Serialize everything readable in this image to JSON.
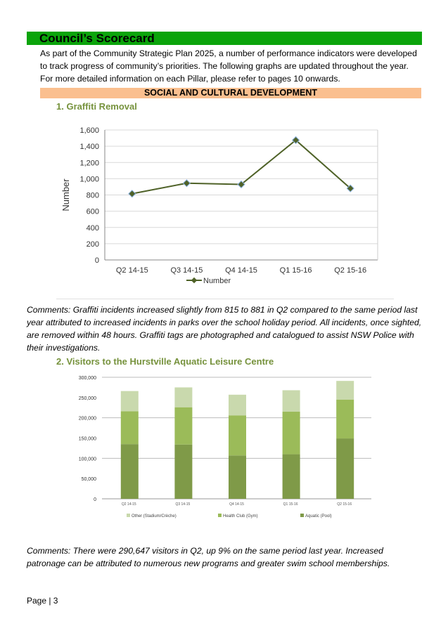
{
  "title": "Council’s Scorecard",
  "intro": "As part of the Community Strategic Plan 2025, a number of performance indicators were developed to track progress of community’s priorities.  The following graphs are updated throughout the year. For more detailed information on each Pillar, please refer to pages 10 onwards.",
  "section": "SOCIAL AND CULTURAL DEVELOPMENT",
  "heading1": "1.  Graffiti Removal",
  "comments1": "Comments: Graffiti incidents increased slightly from 815 to 881 in Q2 compared to the same period last year attributed to increased incidents in parks over the school holiday period. All incidents, once sighted, are removed within 48 hours. Graffiti tags are photographed and catalogued to assist NSW Police with their investigations.",
  "heading2": "2.  Visitors to the Hurstville Aquatic Leisure Centre",
  "comments2": "Comments: There were 290,647 visitors in Q2, up 9% on the same period last year. Increased patronage can be attributed to numerous new programs and greater swim school memberships.",
  "footer": "Page | 3",
  "chart_data": [
    {
      "type": "line",
      "title": "",
      "categories": [
        "Q2 14-15",
        "Q3 14-15",
        "Q4 14-15",
        "Q1 15-16",
        "Q2 15-16"
      ],
      "series": [
        {
          "name": "Number",
          "values": [
            815,
            945,
            930,
            1475,
            881
          ],
          "color": "#4f6228"
        }
      ],
      "ylabel": "Number",
      "xlabel": "",
      "ylim": [
        0,
        1600
      ],
      "yticks": [
        0,
        200,
        400,
        600,
        800,
        1000,
        1200,
        1400,
        1600
      ],
      "ytick_labels": [
        "0",
        "200",
        "400",
        "600",
        "800",
        "1,000",
        "1,200",
        "1,400",
        "1,600"
      ],
      "grid": true,
      "legend": "bottom"
    },
    {
      "type": "bar",
      "stacked": true,
      "categories": [
        "Q2 14-15",
        "Q3 14-15",
        "Q4 14-15",
        "Q1 15-16",
        "Q2 15-16"
      ],
      "series": [
        {
          "name": "Aquatic (Pool)",
          "values": [
            135000,
            134000,
            107000,
            110000,
            149000
          ],
          "color": "#7f9a48"
        },
        {
          "name": "Health Club (Gym)",
          "values": [
            81000,
            92000,
            99000,
            105000,
            96000
          ],
          "color": "#9bbb59"
        },
        {
          "name": "Other (Stadium/Crèche)",
          "values": [
            50000,
            49000,
            51000,
            53000,
            46000
          ],
          "color": "#c9d9ad"
        }
      ],
      "legend_order": [
        "Other (Stadium/Crèche)",
        "Health Club (Gym)",
        "Aquatic (Pool)"
      ],
      "ylim": [
        0,
        300000
      ],
      "yticks": [
        0,
        50000,
        100000,
        150000,
        200000,
        250000,
        300000
      ],
      "ytick_labels": [
        "0",
        "50,000",
        "100,000",
        "150,000",
        "200,000",
        "250,000",
        "300,000"
      ],
      "grid": true,
      "legend": "bottom"
    }
  ]
}
